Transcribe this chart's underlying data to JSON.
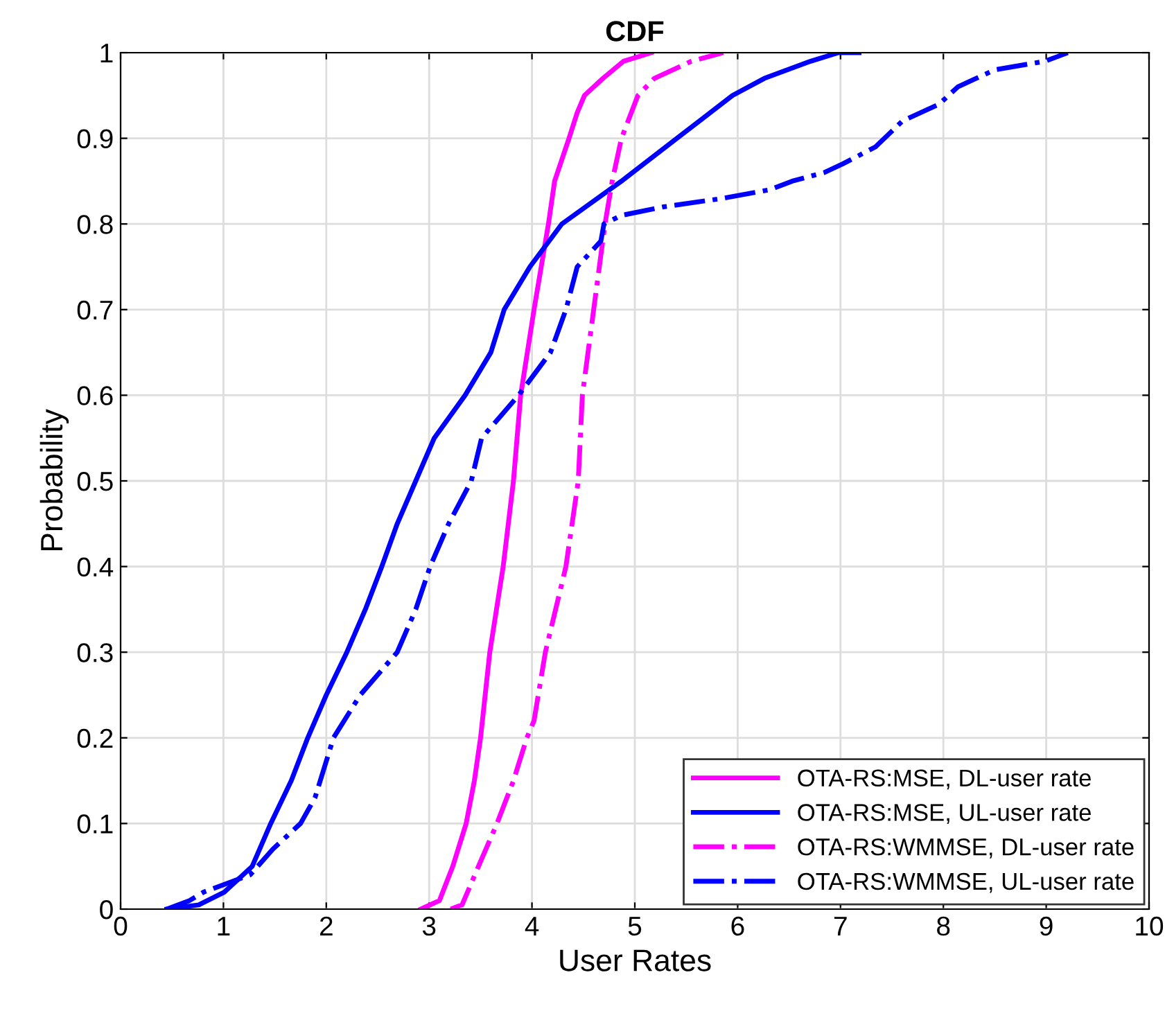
{
  "chart_data": {
    "type": "line",
    "title": "CDF",
    "xlabel": "User Rates",
    "ylabel": "Probability",
    "xlim": [
      0,
      10
    ],
    "xticks": [
      0,
      1,
      2,
      3,
      4,
      5,
      6,
      7,
      8,
      9,
      10
    ],
    "ylim": [
      0,
      1
    ],
    "yticks": [
      0,
      0.1,
      0.2,
      0.3,
      0.4,
      0.5,
      0.6,
      0.7,
      0.8,
      0.9,
      1
    ],
    "grid": true,
    "legend": "bottom right",
    "marker": "none",
    "series": [
      {
        "name": "OTA-RS:MSE, DL-user rate",
        "color": "#ff00ff",
        "line_style": "solid",
        "x": [
          2.92,
          3.1,
          3.23,
          3.36,
          3.44,
          3.5,
          3.59,
          3.72,
          3.82,
          3.89,
          4.02,
          4.16,
          4.22,
          4.36,
          4.44,
          4.51,
          4.69,
          4.89,
          5.16
        ],
        "values": [
          0,
          0.01,
          0.05,
          0.1,
          0.15,
          0.2,
          0.3,
          0.4,
          0.5,
          0.6,
          0.7,
          0.8,
          0.85,
          0.9,
          0.93,
          0.95,
          0.97,
          0.99,
          1.0
        ]
      },
      {
        "name": "OTA-RS:MSE, UL-user rate",
        "color": "#0000ff",
        "line_style": "solid",
        "x": [
          0.45,
          0.76,
          1.01,
          1.28,
          1.46,
          1.66,
          1.82,
          2.0,
          2.2,
          2.38,
          2.54,
          2.69,
          2.87,
          3.05,
          3.35,
          3.6,
          3.73,
          3.98,
          4.29,
          4.87,
          5.41,
          5.95,
          6.26,
          6.71,
          6.98,
          7.18
        ],
        "values": [
          0,
          0.005,
          0.02,
          0.05,
          0.1,
          0.15,
          0.2,
          0.25,
          0.3,
          0.35,
          0.4,
          0.45,
          0.5,
          0.55,
          0.6,
          0.65,
          0.7,
          0.75,
          0.8,
          0.85,
          0.9,
          0.95,
          0.97,
          0.99,
          1.0,
          1.0
        ]
      },
      {
        "name": "OTA-RS:WMMSE, DL-user rate",
        "color": "#ff00ff",
        "line_style": "dashdot",
        "x": [
          3.21,
          3.32,
          3.48,
          3.66,
          3.82,
          3.95,
          4.02,
          4.13,
          4.33,
          4.45,
          4.49,
          4.6,
          4.71,
          4.78,
          4.87,
          5.03,
          5.19,
          5.55,
          5.86
        ],
        "values": [
          0,
          0.005,
          0.05,
          0.1,
          0.15,
          0.2,
          0.22,
          0.3,
          0.4,
          0.5,
          0.6,
          0.7,
          0.8,
          0.85,
          0.9,
          0.95,
          0.97,
          0.99,
          1.0
        ]
      },
      {
        "name": "OTA-RS:WMMSE, UL-user rate",
        "color": "#0000ff",
        "line_style": "dashdot",
        "x": [
          0.45,
          0.67,
          0.81,
          1.26,
          1.48,
          1.75,
          1.89,
          2.07,
          2.33,
          2.69,
          2.87,
          3.01,
          3.19,
          3.41,
          3.51,
          3.87,
          4.18,
          4.33,
          4.44,
          4.67,
          4.7,
          4.87,
          5.28,
          5.86,
          6.31,
          6.53,
          6.84,
          7.02,
          7.34,
          7.6,
          7.96,
          8.14,
          8.5,
          8.99,
          9.21
        ],
        "values": [
          0,
          0.01,
          0.02,
          0.04,
          0.07,
          0.1,
          0.13,
          0.2,
          0.25,
          0.3,
          0.35,
          0.4,
          0.45,
          0.5,
          0.55,
          0.6,
          0.65,
          0.7,
          0.75,
          0.78,
          0.8,
          0.81,
          0.82,
          0.83,
          0.84,
          0.85,
          0.86,
          0.87,
          0.89,
          0.92,
          0.94,
          0.96,
          0.98,
          0.99,
          1.0
        ]
      }
    ]
  }
}
